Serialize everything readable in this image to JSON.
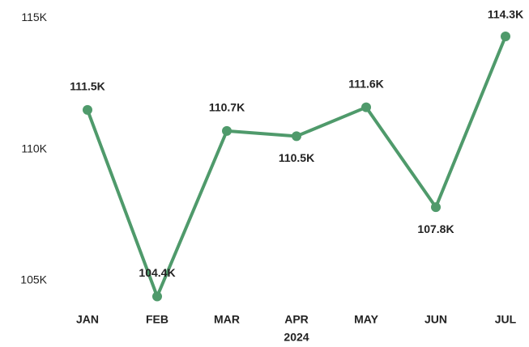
{
  "chart_data": {
    "type": "line",
    "categories": [
      "JAN",
      "FEB",
      "MAR",
      "APR",
      "MAY",
      "JUN",
      "JUL"
    ],
    "xlabel": "2024",
    "series": [
      {
        "name": "Value",
        "color": "#4f9a6b",
        "values": [
          111500,
          104400,
          110700,
          110500,
          111600,
          107800,
          114300
        ],
        "value_labels": [
          "111.5K",
          "104.4K",
          "110.7K",
          "110.5K",
          "111.6K",
          "107.8K",
          "114.3K"
        ]
      }
    ],
    "ylim": [
      104000,
      115500
    ],
    "yticks": [
      {
        "value": 105000,
        "label": "105K"
      },
      {
        "value": 110000,
        "label": "110K"
      },
      {
        "value": 115000,
        "label": "115K"
      }
    ],
    "grid": false
  }
}
